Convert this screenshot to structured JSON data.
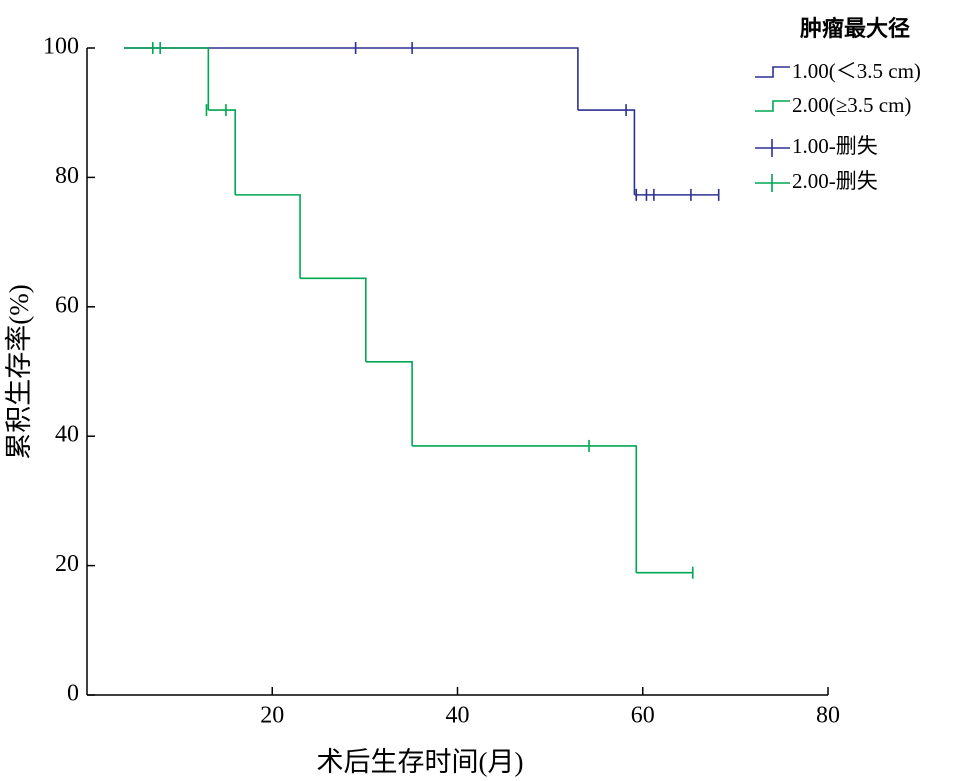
{
  "chart_data": {
    "type": "step",
    "xlabel": "术后生存时间(月)",
    "ylabel": "累积生存率(%)",
    "legend_title": "肿瘤最大径",
    "xlim": [
      0,
      80
    ],
    "xticks": [
      20,
      40,
      60,
      80
    ],
    "ylim": [
      0,
      100
    ],
    "yticks": [
      0,
      20,
      40,
      60,
      80,
      100
    ],
    "series": [
      {
        "name": "1.00(＜3.5 cm)",
        "color": "#2e3192",
        "x": [
          4,
          53,
          59.1,
          68.2
        ],
        "values": [
          100,
          90.4,
          77.3,
          77.3
        ]
      },
      {
        "name": "2.00(≥3.5 cm)",
        "color": "#00a651",
        "x": [
          4,
          13.1,
          16,
          23,
          30.1,
          35.1,
          59.3,
          65.4
        ],
        "values": [
          100,
          90.4,
          77.3,
          64.4,
          51.5,
          38.5,
          18.9,
          18.9
        ]
      }
    ],
    "censored": [
      {
        "name": "1.00-删失",
        "color": "#2e3192",
        "x": [
          29,
          35.1,
          58.2,
          59.3,
          60.4,
          61.2,
          65.2,
          68.2
        ],
        "values": [
          100,
          100,
          90.4,
          77.3,
          77.3,
          77.3,
          77.3,
          77.3
        ]
      },
      {
        "name": "2.00-删失",
        "color": "#00a651",
        "x": [
          7.1,
          7.9,
          12.9,
          15,
          54.2,
          65.4
        ],
        "values": [
          100,
          100,
          90.4,
          90.4,
          38.5,
          18.9
        ]
      }
    ]
  }
}
